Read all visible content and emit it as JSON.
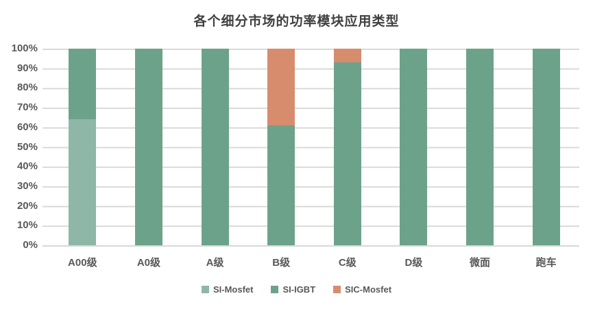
{
  "chart_data": {
    "type": "bar",
    "stacked": true,
    "orientation": "vertical",
    "title": "各个细分市场的功率模块应用类型",
    "categories": [
      "A00级",
      "A0级",
      "A级",
      "B级",
      "C级",
      "D级",
      "微面",
      "跑车"
    ],
    "series": [
      {
        "name": "SI-Mosfet",
        "color": "#8fb7a7",
        "values": [
          64,
          0,
          0,
          0,
          0,
          0,
          0,
          0
        ]
      },
      {
        "name": "SI-IGBT",
        "color": "#6da28a",
        "values": [
          36,
          100,
          100,
          61,
          93,
          100,
          100,
          100
        ]
      },
      {
        "name": "SIC-Mosfet",
        "color": "#d88c6e",
        "values": [
          0,
          0,
          0,
          39,
          7,
          0,
          0,
          0
        ]
      }
    ],
    "y_ticks": [
      "100%",
      "90%",
      "80%",
      "70%",
      "60%",
      "50%",
      "40%",
      "30%",
      "20%",
      "10%",
      "0%"
    ],
    "ylabel": "",
    "xlabel": "",
    "ylim": [
      0,
      100
    ],
    "unit": "percent",
    "grid": true,
    "gridline_color": "#d9d9d9",
    "text_color": "#595959",
    "title_color": "#404040",
    "legend_position": "bottom"
  }
}
